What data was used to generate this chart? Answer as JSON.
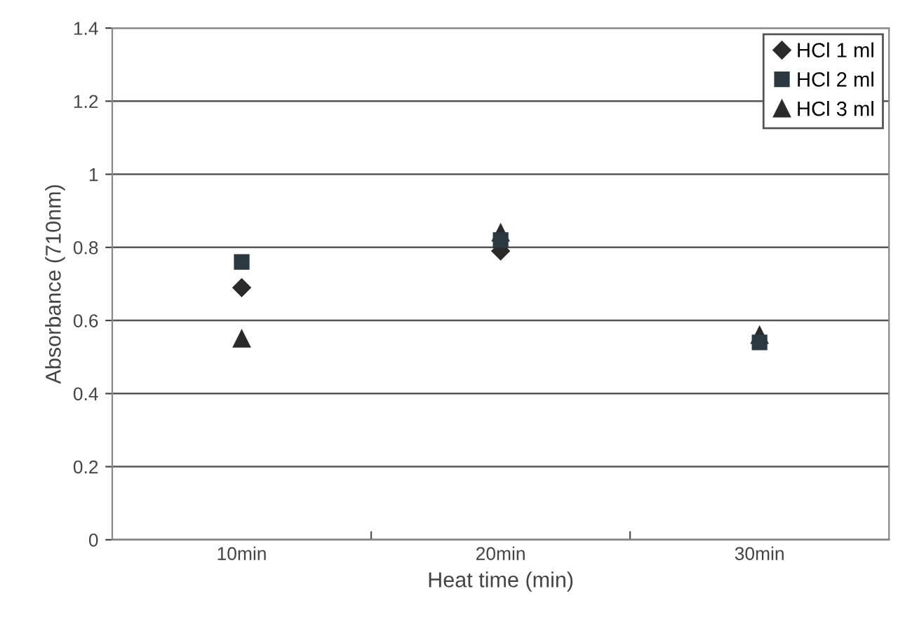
{
  "chart_data": {
    "type": "scatter",
    "xlabel": "Heat time (min)",
    "ylabel": "Absorbance (710nm)",
    "categories": [
      "10min",
      "20min",
      "30min"
    ],
    "series": [
      {
        "name": "HCl 1 ml",
        "color": "#2b2b2b",
        "marker": "diamond",
        "values": [
          0.69,
          0.79,
          null
        ]
      },
      {
        "name": "HCl 2 ml",
        "color": "#2b3a40",
        "marker": "square",
        "values": [
          0.76,
          0.82,
          0.54
        ]
      },
      {
        "name": "HCl 3 ml",
        "color": "#2b2b2b",
        "marker": "triangle",
        "values": [
          0.55,
          0.84,
          0.56
        ]
      }
    ],
    "ylim": [
      0,
      1.4
    ],
    "yticks": [
      0,
      0.2,
      0.4,
      0.6,
      0.8,
      1,
      1.2,
      1.4
    ],
    "grid": "y",
    "legend": "top right"
  }
}
